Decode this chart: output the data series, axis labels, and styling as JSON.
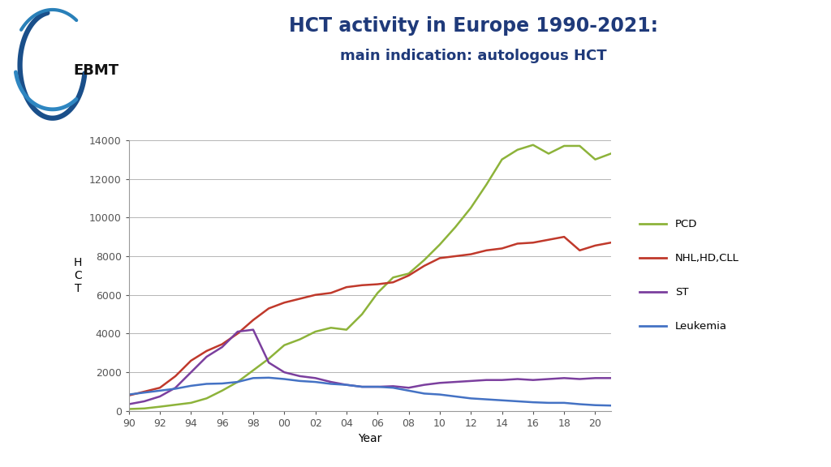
{
  "title_line1": "HCT activity in Europe 1990-2021:",
  "title_line2": "main indication: autologous HCT",
  "title_color": "#1F3A7A",
  "xlabel": "Year",
  "ylabel": "H\nC\nT",
  "xlim": [
    1990,
    2021
  ],
  "ylim": [
    0,
    14000
  ],
  "yticks": [
    0,
    2000,
    4000,
    6000,
    8000,
    10000,
    12000,
    14000
  ],
  "xtick_labels": [
    "90",
    "92",
    "94",
    "96",
    "98",
    "00",
    "02",
    "04",
    "06",
    "08",
    "10",
    "12",
    "14",
    "16",
    "18",
    "20"
  ],
  "xtick_values": [
    1990,
    1992,
    1994,
    1996,
    1998,
    2000,
    2002,
    2004,
    2006,
    2008,
    2010,
    2012,
    2014,
    2016,
    2018,
    2020
  ],
  "background_color": "#FFFFFF",
  "series": {
    "PCD": {
      "color": "#8DB33A",
      "years": [
        1990,
        1991,
        1992,
        1993,
        1994,
        1995,
        1996,
        1997,
        1998,
        1999,
        2000,
        2001,
        2002,
        2003,
        2004,
        2005,
        2006,
        2007,
        2008,
        2009,
        2010,
        2011,
        2012,
        2013,
        2014,
        2015,
        2016,
        2017,
        2018,
        2019,
        2020,
        2021
      ],
      "values": [
        100,
        130,
        220,
        320,
        420,
        650,
        1050,
        1500,
        2100,
        2700,
        3400,
        3700,
        4100,
        4300,
        4200,
        5000,
        6100,
        6900,
        7100,
        7800,
        8600,
        9500,
        10500,
        11700,
        13000,
        13500,
        13750,
        13300,
        13700,
        13700,
        13000,
        13300
      ]
    },
    "NHL,HD,CLL": {
      "color": "#C0392B",
      "years": [
        1990,
        1991,
        1992,
        1993,
        1994,
        1995,
        1996,
        1997,
        1998,
        1999,
        2000,
        2001,
        2002,
        2003,
        2004,
        2005,
        2006,
        2007,
        2008,
        2009,
        2010,
        2011,
        2012,
        2013,
        2014,
        2015,
        2016,
        2017,
        2018,
        2019,
        2020,
        2021
      ],
      "values": [
        800,
        1000,
        1200,
        1800,
        2600,
        3100,
        3450,
        4000,
        4700,
        5300,
        5600,
        5800,
        6000,
        6100,
        6400,
        6500,
        6550,
        6650,
        7000,
        7500,
        7900,
        8000,
        8100,
        8300,
        8400,
        8650,
        8700,
        8850,
        9000,
        8300,
        8550,
        8700
      ]
    },
    "ST": {
      "color": "#7B3F9E",
      "years": [
        1990,
        1991,
        1992,
        1993,
        1994,
        1995,
        1996,
        1997,
        1998,
        1999,
        2000,
        2001,
        2002,
        2003,
        2004,
        2005,
        2006,
        2007,
        2008,
        2009,
        2010,
        2011,
        2012,
        2013,
        2014,
        2015,
        2016,
        2017,
        2018,
        2019,
        2020,
        2021
      ],
      "values": [
        350,
        500,
        750,
        1200,
        2000,
        2800,
        3300,
        4100,
        4200,
        2500,
        2000,
        1800,
        1700,
        1500,
        1350,
        1250,
        1250,
        1280,
        1200,
        1350,
        1450,
        1500,
        1550,
        1600,
        1600,
        1650,
        1600,
        1650,
        1700,
        1650,
        1700,
        1700
      ]
    },
    "Leukemia": {
      "color": "#4472C4",
      "years": [
        1990,
        1991,
        1992,
        1993,
        1994,
        1995,
        1996,
        1997,
        1998,
        1999,
        2000,
        2001,
        2002,
        2003,
        2004,
        2005,
        2006,
        2007,
        2008,
        2009,
        2010,
        2011,
        2012,
        2013,
        2014,
        2015,
        2016,
        2017,
        2018,
        2019,
        2020,
        2021
      ],
      "values": [
        850,
        950,
        1050,
        1150,
        1300,
        1400,
        1420,
        1500,
        1700,
        1720,
        1650,
        1550,
        1500,
        1400,
        1350,
        1250,
        1250,
        1200,
        1050,
        900,
        850,
        750,
        650,
        600,
        550,
        500,
        450,
        420,
        420,
        350,
        300,
        280
      ]
    }
  },
  "legend_order": [
    "PCD",
    "NHL,HD,CLL",
    "ST",
    "Leukemia"
  ],
  "logo_text": "EBMT",
  "grid_color": "#AAAAAA",
  "spine_color": "#999999"
}
